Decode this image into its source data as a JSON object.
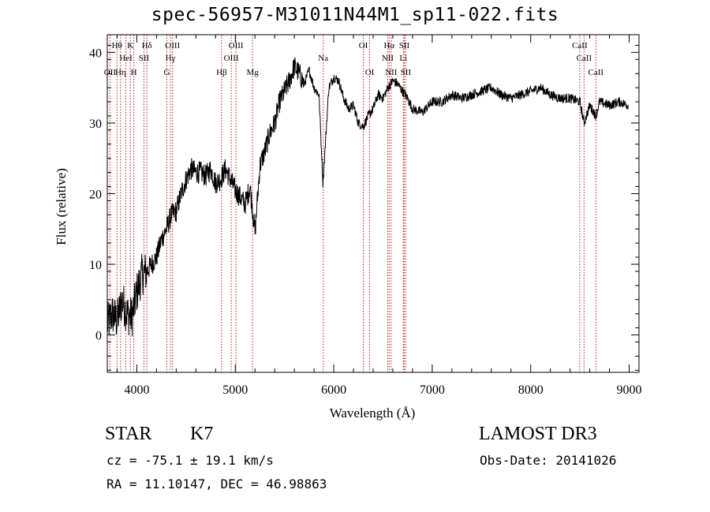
{
  "title": "spec-56957-M31011N44M1_sp11-022.fits",
  "info": {
    "class": "STAR",
    "subclass": "K7",
    "survey": "LAMOST DR3",
    "cz": "cz = -75.1 ± 19.1 km/s",
    "obs_date": "Obs-Date: 20141026",
    "radec": "RA =  11.10147, DEC =  46.98863"
  },
  "chart_data": {
    "type": "line",
    "title": "spec-56957-M31011N44M1_sp11-022.fits",
    "xlabel": "Wavelength (Å)",
    "ylabel": "Flux (relative)",
    "xlim": [
      3700,
      9100
    ],
    "ylim": [
      -5.3,
      42.5
    ],
    "xticks": [
      4000,
      5000,
      6000,
      7000,
      8000,
      9000
    ],
    "yticks": [
      0,
      10,
      20,
      30,
      40
    ],
    "line_color": "#000000",
    "marker_color": "#b22222",
    "series": [
      {
        "x": [
          3700,
          3750,
          3800,
          3850,
          3900,
          3950,
          4000,
          4050,
          4100,
          4150,
          4200,
          4250,
          4300,
          4350,
          4400,
          4450,
          4500,
          4550,
          4600,
          4650,
          4700,
          4750,
          4800,
          4850,
          4900,
          4950,
          5000,
          5050,
          5100,
          5150,
          5200,
          5250,
          5300,
          5350,
          5400,
          5450,
          5500,
          5550,
          5600,
          5650,
          5700,
          5750,
          5800,
          5850,
          5890,
          5950,
          6000,
          6050,
          6100,
          6150,
          6200,
          6250,
          6300,
          6350,
          6400,
          6450,
          6500,
          6550,
          6600,
          6650,
          6700,
          6750,
          6800,
          6900,
          7000,
          7100,
          7200,
          7300,
          7400,
          7500,
          7600,
          7700,
          7800,
          7900,
          8000,
          8100,
          8200,
          8300,
          8400,
          8500,
          8542,
          8600,
          8662,
          8700,
          8800,
          8900,
          8990
        ],
        "values": [
          1.5,
          3.0,
          2.0,
          5.0,
          3.0,
          2.5,
          6.0,
          8.5,
          9.0,
          10.0,
          11.0,
          13.5,
          15.0,
          17.0,
          17.5,
          20.0,
          22.0,
          23.5,
          23.0,
          23.0,
          22.5,
          23.5,
          21.5,
          22.0,
          23.5,
          22.0,
          20.5,
          19.5,
          18.5,
          21.0,
          14.5,
          24.0,
          26.0,
          28.5,
          30.0,
          33.0,
          34.5,
          36.0,
          38.0,
          37.0,
          35.5,
          37.5,
          35.0,
          34.0,
          21.5,
          35.0,
          36.5,
          36.0,
          33.5,
          32.0,
          32.5,
          30.0,
          29.5,
          31.0,
          32.0,
          34.0,
          33.5,
          35.0,
          36.0,
          35.5,
          34.5,
          33.5,
          32.0,
          31.5,
          33.0,
          33.0,
          34.0,
          33.5,
          34.0,
          34.5,
          35.0,
          34.0,
          33.5,
          34.0,
          34.5,
          35.0,
          34.0,
          33.5,
          33.5,
          33.0,
          30.0,
          32.5,
          31.0,
          33.0,
          32.5,
          33.0,
          32.5
        ]
      }
    ],
    "lines": [
      {
        "wl": 3727,
        "label": "OII",
        "row": 3
      },
      {
        "wl": 3798,
        "label": "Hθ",
        "row": 1
      },
      {
        "wl": 3835,
        "label": "Hη",
        "row": 3
      },
      {
        "wl": 3889,
        "label": "HeI",
        "row": 2
      },
      {
        "wl": 3934,
        "label": "K",
        "row": 1
      },
      {
        "wl": 3969,
        "label": "H",
        "row": 3
      },
      {
        "wl": 4072,
        "label": "SII",
        "row": 2
      },
      {
        "wl": 4102,
        "label": "Hδ",
        "row": 1
      },
      {
        "wl": 4305,
        "label": "G",
        "row": 3
      },
      {
        "wl": 4341,
        "label": "Hγ",
        "row": 2
      },
      {
        "wl": 4363,
        "label": "OIII",
        "row": 1
      },
      {
        "wl": 4861,
        "label": "Hβ",
        "row": 3
      },
      {
        "wl": 4959,
        "label": "OIII",
        "row": 2
      },
      {
        "wl": 5007,
        "label": "OIII",
        "row": 1
      },
      {
        "wl": 5175,
        "label": "Mg",
        "row": 3
      },
      {
        "wl": 5893,
        "label": "Na",
        "row": 2
      },
      {
        "wl": 6300,
        "label": "OI",
        "row": 1
      },
      {
        "wl": 6364,
        "label": "OI",
        "row": 3
      },
      {
        "wl": 6548,
        "label": "NII",
        "row": 2
      },
      {
        "wl": 6563,
        "label": "Hα",
        "row": 1
      },
      {
        "wl": 6583,
        "label": "NII",
        "row": 3
      },
      {
        "wl": 6707,
        "label": "Li",
        "row": 2
      },
      {
        "wl": 6716,
        "label": "SII",
        "row": 1
      },
      {
        "wl": 6731,
        "label": "SII",
        "row": 3
      },
      {
        "wl": 8498,
        "label": "CaII",
        "row": 1
      },
      {
        "wl": 8542,
        "label": "CaII",
        "row": 2
      },
      {
        "wl": 8662,
        "label": "CaII",
        "row": 3
      }
    ]
  }
}
